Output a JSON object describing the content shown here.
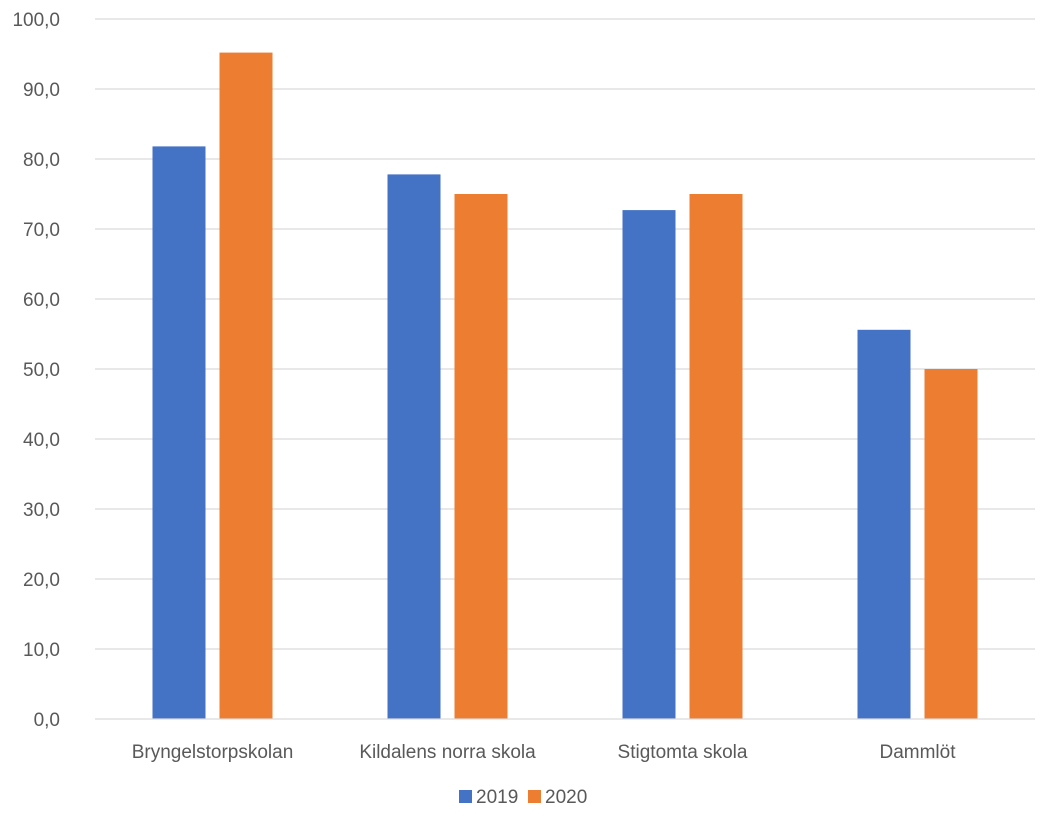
{
  "chart_data": {
    "type": "bar",
    "categories": [
      "Bryngelstorpskolan",
      "Kildalens norra skola",
      "Stigtomta skola",
      "Dammlöt"
    ],
    "series": [
      {
        "name": "2019",
        "values": [
          81.8,
          77.8,
          72.7,
          55.6
        ],
        "color": "#4472c4"
      },
      {
        "name": "2020",
        "values": [
          95.2,
          75.0,
          75.0,
          50.0
        ],
        "color": "#ed7d31"
      }
    ],
    "ylim": [
      0,
      100
    ],
    "yticks": [
      "0,0",
      "10,0",
      "20,0",
      "30,0",
      "40,0",
      "50,0",
      "60,0",
      "70,0",
      "80,0",
      "90,0",
      "100,0"
    ],
    "grid": true,
    "legend": "bottom"
  }
}
